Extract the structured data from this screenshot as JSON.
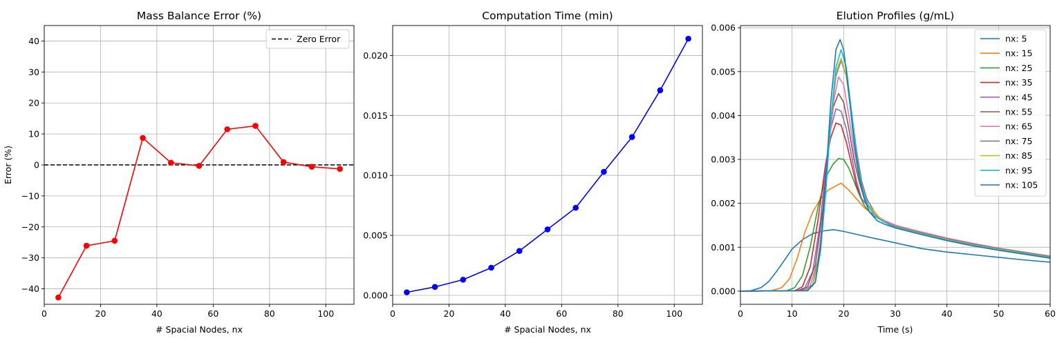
{
  "chart_data": [
    {
      "type": "line",
      "title": "Mass Balance Error (%)",
      "xlabel": "# Spacial Nodes, nx",
      "ylabel": "Error (%)",
      "xlim": [
        0,
        110
      ],
      "ylim": [
        -45,
        45
      ],
      "xticks": [
        0,
        20,
        40,
        60,
        80,
        100
      ],
      "yticks": [
        -40,
        -30,
        -20,
        -10,
        0,
        10,
        20,
        30,
        40
      ],
      "xtick_labels": [
        "0",
        "20",
        "40",
        "60",
        "80",
        "100"
      ],
      "ytick_labels": [
        "−40",
        "−30",
        "−20",
        "−10",
        "0",
        "10",
        "20",
        "30",
        "40"
      ],
      "grid": true,
      "legend_position": "top-right",
      "series": [
        {
          "name": "",
          "color": "#ff0000",
          "marker": "circle",
          "x": [
            5,
            15,
            25,
            35,
            45,
            55,
            65,
            75,
            85,
            95,
            105
          ],
          "y": [
            -42.8,
            -26.1,
            -24.5,
            8.7,
            0.7,
            -0.3,
            11.5,
            12.6,
            0.9,
            -0.6,
            -1.3
          ]
        }
      ],
      "reference_lines": [
        {
          "name": "Zero Error",
          "y": 0,
          "color": "#000000",
          "style": "dashed"
        }
      ]
    },
    {
      "type": "line",
      "title": "Computation Time (min)",
      "xlabel": "# Spacial Nodes, nx",
      "ylabel": "",
      "xlim": [
        0,
        110
      ],
      "ylim": [
        -0.00075,
        0.0225
      ],
      "xticks": [
        0,
        20,
        40,
        60,
        80,
        100
      ],
      "yticks": [
        0,
        0.005,
        0.01,
        0.015,
        0.02
      ],
      "xtick_labels": [
        "0",
        "20",
        "40",
        "60",
        "80",
        "100"
      ],
      "ytick_labels": [
        "0.000",
        "0.005",
        "0.010",
        "0.015",
        "0.020"
      ],
      "grid": true,
      "series": [
        {
          "name": "",
          "color": "#0000ff",
          "marker": "circle",
          "x": [
            5,
            15,
            25,
            35,
            45,
            55,
            65,
            75,
            85,
            95,
            105
          ],
          "y": [
            0.00025,
            0.0007,
            0.0013,
            0.0023,
            0.0037,
            0.0055,
            0.0073,
            0.0103,
            0.0132,
            0.0171,
            0.0214
          ]
        }
      ]
    },
    {
      "type": "line",
      "title": "Elution Profiles (g/mL)",
      "xlabel": "Time (s)",
      "ylabel": "",
      "xlim": [
        0,
        60
      ],
      "ylim": [
        -0.0003,
        0.00605
      ],
      "xticks": [
        0,
        10,
        20,
        30,
        40,
        50,
        60
      ],
      "yticks": [
        0,
        0.001,
        0.002,
        0.003,
        0.004,
        0.005,
        0.006
      ],
      "xtick_labels": [
        "0",
        "10",
        "20",
        "30",
        "40",
        "50",
        "60"
      ],
      "ytick_labels": [
        "0.000",
        "0.001",
        "0.002",
        "0.003",
        "0.004",
        "0.005",
        "0.006"
      ],
      "grid": true,
      "legend_position": "top-right",
      "series": [
        {
          "name": "nx: 5",
          "color": "#1f77b4",
          "x": [
            0,
            2,
            4,
            5.5,
            7,
            8.5,
            10,
            12,
            14,
            16,
            18,
            20,
            23,
            26,
            30,
            35,
            40,
            45,
            50,
            55,
            60
          ],
          "y": [
            0,
            1e-05,
            8e-05,
            0.00022,
            0.00045,
            0.0007,
            0.00096,
            0.00117,
            0.00131,
            0.00137,
            0.0014,
            0.00136,
            0.00128,
            0.0012,
            0.0011,
            0.00097,
            0.00089,
            0.00083,
            0.00077,
            0.00071,
            0.00066
          ]
        },
        {
          "name": "nx: 15",
          "color": "#ff7f0e",
          "x": [
            0,
            6,
            8,
            9.5,
            11,
            12.5,
            14,
            15.5,
            17,
            18.5,
            19.5,
            21,
            22.5,
            24,
            26,
            28,
            30,
            35,
            40,
            45,
            50,
            55,
            60
          ],
          "y": [
            0,
            1e-05,
            8e-05,
            0.00028,
            0.00075,
            0.00135,
            0.0018,
            0.0021,
            0.0023,
            0.0024,
            0.00246,
            0.0023,
            0.0021,
            0.0019,
            0.00172,
            0.0016,
            0.00149,
            0.0013,
            0.00116,
            0.00104,
            0.00094,
            0.00085,
            0.00077
          ]
        },
        {
          "name": "nx: 25",
          "color": "#2ca02c",
          "x": [
            0,
            9,
            10.5,
            12,
            13.5,
            15,
            16.5,
            18,
            19,
            20,
            21,
            22,
            23,
            24,
            25,
            26,
            28,
            30,
            35,
            40,
            45,
            50,
            55,
            60
          ],
          "y": [
            0,
            1e-05,
            8e-05,
            0.00035,
            0.001,
            0.0019,
            0.0026,
            0.0029,
            0.00302,
            0.003,
            0.0028,
            0.0025,
            0.0022,
            0.00195,
            0.0018,
            0.0017,
            0.0016,
            0.0015,
            0.00131,
            0.00116,
            0.00104,
            0.00094,
            0.00085,
            0.00076
          ]
        },
        {
          "name": "nx: 35",
          "color": "#d62728",
          "x": [
            0,
            10.5,
            12,
            13.5,
            15,
            16.5,
            17.5,
            18.5,
            19.5,
            20.5,
            21.5,
            22.5,
            23.5,
            25,
            26.5,
            28,
            30,
            35,
            40,
            45,
            50,
            55,
            60
          ],
          "y": [
            0,
            1e-05,
            0.0001,
            0.00055,
            0.0016,
            0.0029,
            0.0035,
            0.00383,
            0.00378,
            0.0034,
            0.0029,
            0.0024,
            0.0021,
            0.0019,
            0.0017,
            0.0016,
            0.0015,
            0.00133,
            0.00118,
            0.00106,
            0.00096,
            0.00087,
            0.00078
          ]
        },
        {
          "name": "nx: 45",
          "color": "#9467bd",
          "x": [
            0,
            11,
            12.5,
            14,
            15.5,
            16.5,
            17.5,
            18.5,
            19.5,
            20.5,
            21.5,
            22.5,
            23.5,
            25,
            26.5,
            28,
            30,
            35,
            40,
            45,
            50,
            55,
            60
          ],
          "y": [
            0,
            1e-05,
            8e-05,
            0.00045,
            0.0016,
            0.0028,
            0.0037,
            0.00415,
            0.0041,
            0.0037,
            0.0031,
            0.0025,
            0.0021,
            0.0019,
            0.0017,
            0.0016,
            0.0015,
            0.00134,
            0.00119,
            0.00107,
            0.00097,
            0.00087,
            0.00079
          ]
        },
        {
          "name": "nx: 55",
          "color": "#8c564b",
          "x": [
            0,
            11.5,
            13,
            14.5,
            16,
            17,
            18,
            19,
            20,
            21,
            22,
            23,
            24,
            25,
            26.5,
            28,
            30,
            35,
            40,
            45,
            50,
            55,
            60
          ],
          "y": [
            0,
            1e-05,
            0.0001,
            0.0006,
            0.0019,
            0.0033,
            0.0042,
            0.0045,
            0.0043,
            0.0037,
            0.003,
            0.0025,
            0.0021,
            0.0019,
            0.0017,
            0.0016,
            0.0015,
            0.00134,
            0.0012,
            0.00108,
            0.00097,
            0.00088,
            0.00079
          ]
        },
        {
          "name": "nx: 65",
          "color": "#e377c2",
          "x": [
            0,
            12,
            13.5,
            15,
            16,
            17,
            18,
            19,
            20,
            21,
            22,
            23,
            24,
            25,
            26.5,
            28,
            30,
            35,
            40,
            45,
            50,
            55,
            60
          ],
          "y": [
            0,
            1e-05,
            0.00012,
            0.0007,
            0.0017,
            0.0031,
            0.0043,
            0.00488,
            0.0047,
            0.004,
            0.0032,
            0.0026,
            0.0022,
            0.0019,
            0.0017,
            0.0016,
            0.0015,
            0.00135,
            0.00121,
            0.00109,
            0.00098,
            0.00089,
            0.0008
          ]
        },
        {
          "name": "nx: 75",
          "color": "#7f7f7f",
          "x": [
            0,
            12.5,
            14,
            15.5,
            16.5,
            17.5,
            18.5,
            19.5,
            20.5,
            21.5,
            22.5,
            23.5,
            24.5,
            26,
            27.5,
            29,
            30,
            35,
            40,
            45,
            50,
            55,
            60
          ],
          "y": [
            0,
            1e-05,
            0.00015,
            0.001,
            0.0024,
            0.0039,
            0.0049,
            0.00525,
            0.0049,
            0.0041,
            0.0032,
            0.0025,
            0.0021,
            0.0018,
            0.0016,
            0.00152,
            0.00148,
            0.00133,
            0.00119,
            0.00107,
            0.00097,
            0.00088,
            0.00079
          ]
        },
        {
          "name": "nx: 85",
          "color": "#bcbd22",
          "x": [
            0,
            12.5,
            14,
            15.5,
            16.5,
            17.5,
            18.5,
            19.5,
            20.5,
            21.5,
            22.5,
            23.5,
            24.5,
            26,
            27.5,
            29,
            30,
            35,
            40,
            45,
            50,
            55,
            60
          ],
          "y": [
            0,
            1e-05,
            0.00012,
            0.0009,
            0.0023,
            0.0039,
            0.005,
            0.0053,
            0.0049,
            0.004,
            0.0031,
            0.0024,
            0.002,
            0.0018,
            0.0016,
            0.0015,
            0.00146,
            0.00131,
            0.00117,
            0.00105,
            0.00095,
            0.00086,
            0.00077
          ]
        },
        {
          "name": "nx: 95",
          "color": "#17becf",
          "x": [
            0,
            13,
            14.5,
            15.5,
            16.5,
            17.5,
            18.5,
            19.5,
            20.5,
            21.5,
            22.5,
            23.5,
            24.5,
            26,
            27.5,
            29,
            30,
            35,
            40,
            45,
            50,
            55,
            60
          ],
          "y": [
            0,
            1e-05,
            0.0002,
            0.0009,
            0.0022,
            0.0039,
            0.0051,
            0.0055,
            0.0051,
            0.0041,
            0.0031,
            0.0024,
            0.002,
            0.0017,
            0.0016,
            0.0015,
            0.00145,
            0.0013,
            0.00116,
            0.00104,
            0.00094,
            0.00085,
            0.00076
          ]
        },
        {
          "name": "nx: 105",
          "color": "#1f77b4",
          "x": [
            0,
            13,
            14.5,
            15.5,
            16.5,
            17.5,
            18.5,
            19.3,
            20,
            21,
            22,
            23,
            24,
            25,
            26.5,
            28,
            30,
            35,
            40,
            45,
            50,
            55,
            60
          ],
          "y": [
            0,
            1e-05,
            0.0002,
            0.001,
            0.0025,
            0.0043,
            0.0055,
            0.00573,
            0.0055,
            0.0045,
            0.0034,
            0.0026,
            0.0021,
            0.0018,
            0.0016,
            0.00152,
            0.00144,
            0.00129,
            0.00115,
            0.00103,
            0.00093,
            0.00084,
            0.00075
          ]
        }
      ]
    }
  ]
}
